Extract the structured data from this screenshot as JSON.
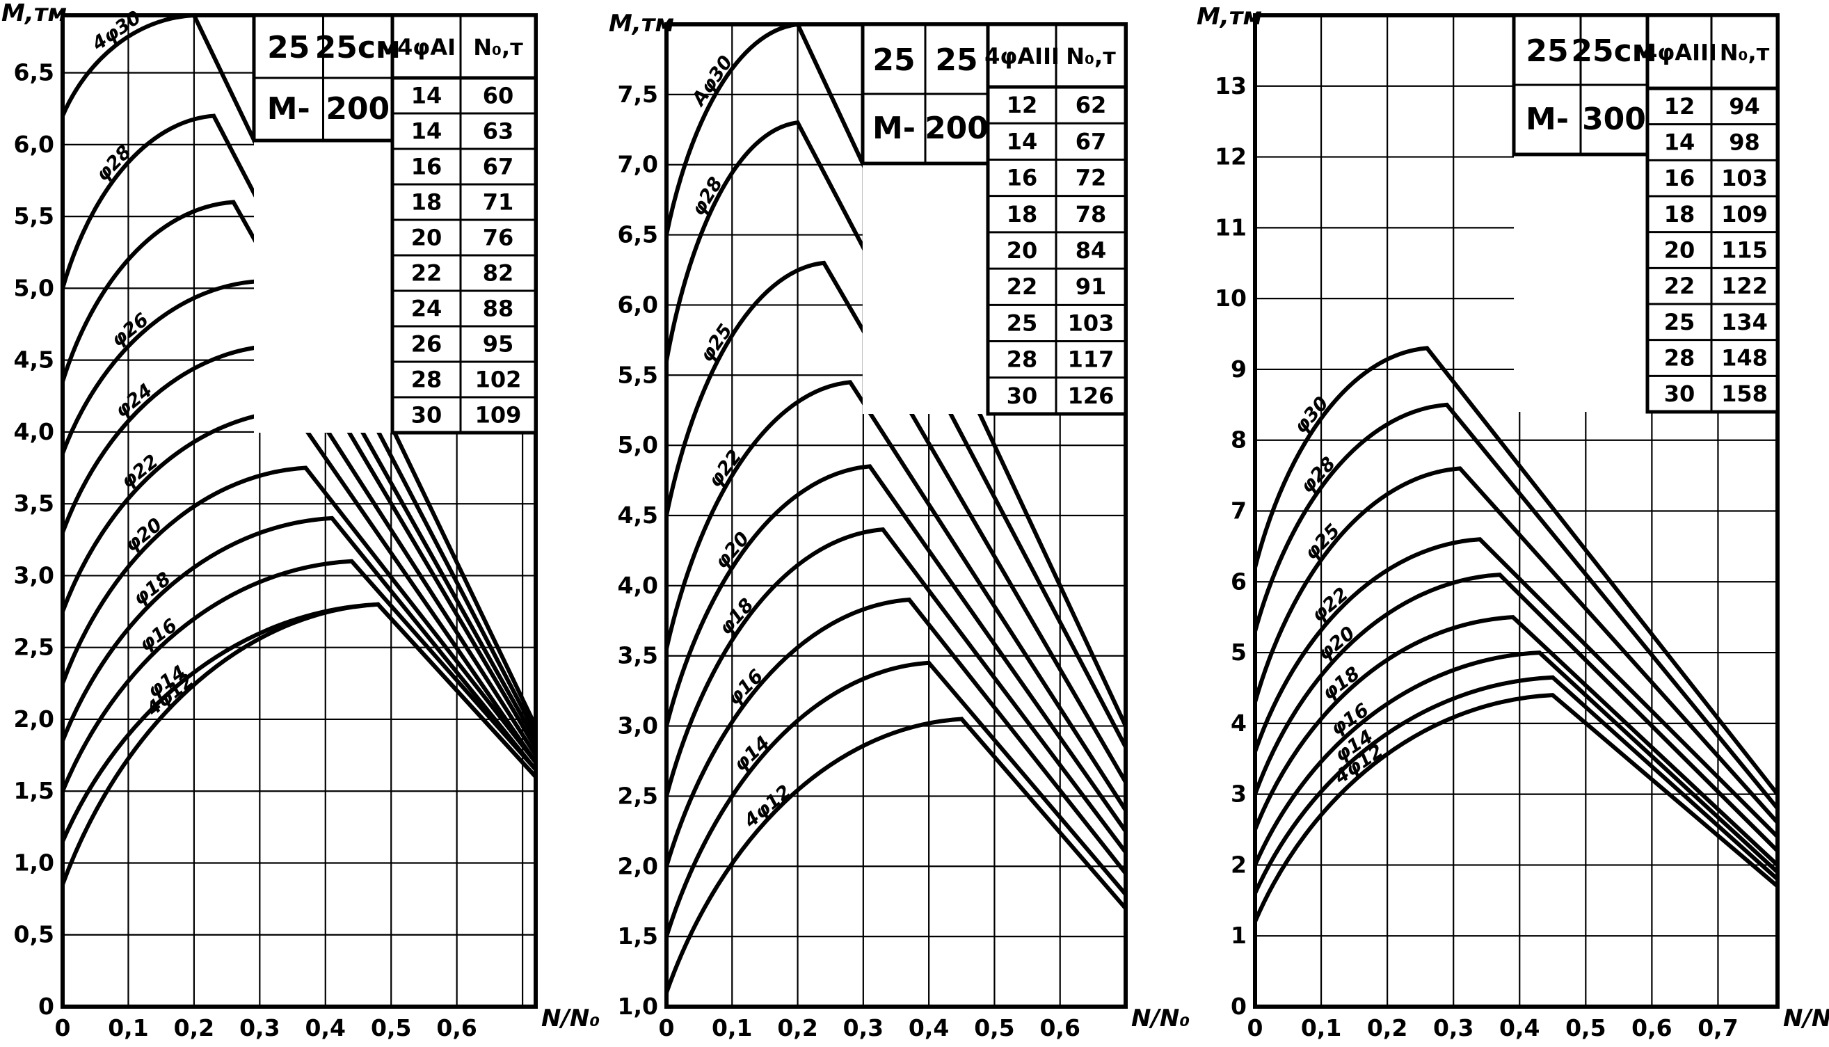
{
  "chart_data": [
    {
      "type": "line",
      "ylabel": "M,тм",
      "xlabel": "N/N₀",
      "x_ticks": [
        "0",
        "0,1",
        "0,2",
        "0,3",
        "0,4",
        "0,5",
        "0,6"
      ],
      "y_ticks": [
        "0",
        "0,5",
        "1,0",
        "1,5",
        "2,0",
        "2,5",
        "3,0",
        "3,5",
        "4,0",
        "4,5",
        "5,0",
        "5,5",
        "6,0",
        "6,5"
      ],
      "xlim": [
        0,
        0.72
      ],
      "ylim": [
        0,
        6.9
      ],
      "table": {
        "size": [
          "25",
          "25см"
        ],
        "grade": [
          "М-",
          "200"
        ],
        "headers": [
          "4φAI",
          "N₀,т"
        ],
        "rows": [
          [
            "14",
            "60"
          ],
          [
            "14",
            "63"
          ],
          [
            "16",
            "67"
          ],
          [
            "18",
            "71"
          ],
          [
            "20",
            "76"
          ],
          [
            "22",
            "82"
          ],
          [
            "24",
            "88"
          ],
          [
            "26",
            "95"
          ],
          [
            "28",
            "102"
          ],
          [
            "30",
            "109"
          ]
        ]
      },
      "series": [
        {
          "name": "4φ30",
          "values": [
            [
              0,
              6.2
            ],
            [
              0.2,
              6.9
            ],
            [
              0.72,
              1.95
            ]
          ]
        },
        {
          "name": "φ28",
          "values": [
            [
              0,
              5.0
            ],
            [
              0.23,
              6.2
            ],
            [
              0.72,
              1.9
            ]
          ]
        },
        {
          "name": "",
          "values": [
            [
              0,
              4.35
            ],
            [
              0.26,
              5.6
            ],
            [
              0.72,
              1.85
            ]
          ]
        },
        {
          "name": "φ26",
          "values": [
            [
              0,
              3.85
            ],
            [
              0.3,
              5.05
            ],
            [
              0.72,
              1.8
            ]
          ]
        },
        {
          "name": "φ24",
          "values": [
            [
              0,
              3.3
            ],
            [
              0.32,
              4.6
            ],
            [
              0.72,
              1.75
            ]
          ]
        },
        {
          "name": "φ22",
          "values": [
            [
              0,
              2.75
            ],
            [
              0.35,
              4.15
            ],
            [
              0.72,
              1.7
            ]
          ]
        },
        {
          "name": "φ20",
          "values": [
            [
              0,
              2.25
            ],
            [
              0.37,
              3.75
            ],
            [
              0.72,
              1.7
            ]
          ]
        },
        {
          "name": "φ18",
          "values": [
            [
              0,
              1.85
            ],
            [
              0.41,
              3.4
            ],
            [
              0.72,
              1.65
            ]
          ]
        },
        {
          "name": "φ16",
          "values": [
            [
              0,
              1.5
            ],
            [
              0.44,
              3.1
            ],
            [
              0.72,
              1.65
            ]
          ]
        },
        {
          "name": "φ14",
          "values": [
            [
              0,
              1.15
            ],
            [
              0.48,
              2.8
            ],
            [
              0.72,
              1.6
            ]
          ]
        },
        {
          "name": "4φ12",
          "values": [
            [
              0,
              0.85
            ],
            [
              0.48,
              2.8
            ],
            [
              0.72,
              1.6
            ]
          ]
        }
      ]
    },
    {
      "type": "line",
      "ylabel": "M,тм",
      "xlabel": "N/N₀",
      "x_ticks": [
        "0",
        "0,1",
        "0,2",
        "0,3",
        "0,4",
        "0,5",
        "0,6"
      ],
      "y_ticks": [
        "1,0",
        "1,5",
        "2,0",
        "2,5",
        "3,0",
        "3,5",
        "4,0",
        "4,5",
        "5,0",
        "5,5",
        "6,0",
        "6,5",
        "7,0",
        "7,5"
      ],
      "xlim": [
        0,
        0.7
      ],
      "ylim": [
        1.0,
        8.0
      ],
      "table": {
        "size": [
          "25",
          "25"
        ],
        "grade": [
          "М-",
          "200"
        ],
        "headers": [
          "4φAIII",
          "N₀,т"
        ],
        "rows": [
          [
            "12",
            "62"
          ],
          [
            "14",
            "67"
          ],
          [
            "16",
            "72"
          ],
          [
            "18",
            "78"
          ],
          [
            "20",
            "84"
          ],
          [
            "22",
            "91"
          ],
          [
            "25",
            "103"
          ],
          [
            "28",
            "117"
          ],
          [
            "30",
            "126"
          ]
        ]
      },
      "series": [
        {
          "name": "Aφ30",
          "values": [
            [
              0,
              6.5
            ],
            [
              0.2,
              8.0
            ],
            [
              0.7,
              3.0
            ]
          ]
        },
        {
          "name": "φ28",
          "values": [
            [
              0,
              5.6
            ],
            [
              0.2,
              7.3
            ],
            [
              0.7,
              2.85
            ]
          ]
        },
        {
          "name": "φ25",
          "values": [
            [
              0,
              4.5
            ],
            [
              0.24,
              6.3
            ],
            [
              0.7,
              2.6
            ]
          ]
        },
        {
          "name": "φ22",
          "values": [
            [
              0,
              3.55
            ],
            [
              0.28,
              5.45
            ],
            [
              0.7,
              2.4
            ]
          ]
        },
        {
          "name": "φ20",
          "values": [
            [
              0,
              3.0
            ],
            [
              0.31,
              4.85
            ],
            [
              0.7,
              2.25
            ]
          ]
        },
        {
          "name": "φ18",
          "values": [
            [
              0,
              2.5
            ],
            [
              0.33,
              4.4
            ],
            [
              0.7,
              2.1
            ]
          ]
        },
        {
          "name": "φ16",
          "values": [
            [
              0,
              2.0
            ],
            [
              0.37,
              3.9
            ],
            [
              0.7,
              1.95
            ]
          ]
        },
        {
          "name": "φ14",
          "values": [
            [
              0,
              1.5
            ],
            [
              0.4,
              3.45
            ],
            [
              0.7,
              1.8
            ]
          ]
        },
        {
          "name": "4φ12",
          "values": [
            [
              0,
              1.1
            ],
            [
              0.45,
              3.05
            ],
            [
              0.7,
              1.7
            ]
          ]
        }
      ]
    },
    {
      "type": "line",
      "ylabel": "M,тм",
      "xlabel": "N/N₀",
      "x_ticks": [
        "0",
        "0,1",
        "0,2",
        "0,3",
        "0,4",
        "0,5",
        "0,6",
        "0,7"
      ],
      "y_ticks": [
        "0",
        "1",
        "2",
        "3",
        "4",
        "5",
        "6",
        "7",
        "8",
        "9",
        "10",
        "11",
        "12",
        "13"
      ],
      "xlim": [
        0,
        0.79
      ],
      "ylim": [
        0,
        14
      ],
      "table": {
        "size": [
          "25",
          "25см"
        ],
        "grade": [
          "М-",
          "300"
        ],
        "headers": [
          "4φAIII",
          "N₀,т"
        ],
        "rows": [
          [
            "12",
            "94"
          ],
          [
            "14",
            "98"
          ],
          [
            "16",
            "103"
          ],
          [
            "18",
            "109"
          ],
          [
            "20",
            "115"
          ],
          [
            "22",
            "122"
          ],
          [
            "25",
            "134"
          ],
          [
            "28",
            "148"
          ],
          [
            "30",
            "158"
          ]
        ]
      },
      "series": [
        {
          "name": "φ30",
          "values": [
            [
              0,
              6.2
            ],
            [
              0.26,
              9.3
            ],
            [
              0.79,
              3.0
            ]
          ]
        },
        {
          "name": "φ28",
          "values": [
            [
              0,
              5.3
            ],
            [
              0.29,
              8.5
            ],
            [
              0.79,
              2.8
            ]
          ]
        },
        {
          "name": "φ25",
          "values": [
            [
              0,
              4.3
            ],
            [
              0.31,
              7.6
            ],
            [
              0.79,
              2.6
            ]
          ]
        },
        {
          "name": "φ22",
          "values": [
            [
              0,
              3.6
            ],
            [
              0.34,
              6.6
            ],
            [
              0.79,
              2.4
            ]
          ]
        },
        {
          "name": "φ20",
          "values": [
            [
              0,
              3.0
            ],
            [
              0.37,
              6.1
            ],
            [
              0.79,
              2.2
            ]
          ]
        },
        {
          "name": "φ18",
          "values": [
            [
              0,
              2.5
            ],
            [
              0.39,
              5.5
            ],
            [
              0.79,
              2.0
            ]
          ]
        },
        {
          "name": "φ16",
          "values": [
            [
              0,
              2.0
            ],
            [
              0.43,
              5.0
            ],
            [
              0.79,
              1.9
            ]
          ]
        },
        {
          "name": "φ14",
          "values": [
            [
              0,
              1.6
            ],
            [
              0.45,
              4.65
            ],
            [
              0.79,
              1.8
            ]
          ]
        },
        {
          "name": "4φ12",
          "values": [
            [
              0,
              1.2
            ],
            [
              0.45,
              4.4
            ],
            [
              0.79,
              1.7
            ]
          ]
        }
      ]
    }
  ]
}
